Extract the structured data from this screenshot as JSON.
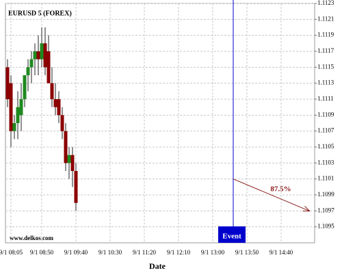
{
  "chart_data": {
    "type": "candlestick",
    "title": "EURUSD 5 (FOREX)",
    "x_label": "Date",
    "watermark": "www.delkos.com",
    "x": [
      "9/1 08:00",
      "9/1 08:05",
      "9/1 08:10",
      "9/1 08:15",
      "9/1 08:20",
      "9/1 08:25",
      "9/1 08:30",
      "9/1 08:35",
      "9/1 08:40",
      "9/1 08:45",
      "9/1 08:50",
      "9/1 08:55",
      "9/1 09:00",
      "9/1 09:05",
      "9/1 09:10",
      "9/1 09:15",
      "9/1 09:20",
      "9/1 09:25",
      "9/1 09:30",
      "9/1 09:35",
      "9/1 09:40"
    ],
    "open": [
      1.1115,
      1.1113,
      1.1107,
      1.1108,
      1.1109,
      1.1111,
      1.1114,
      1.1115,
      1.1116,
      1.1117,
      1.1116,
      1.1118,
      1.1117,
      1.1113,
      1.1111,
      1.1111,
      1.1109,
      1.1107,
      1.1103,
      1.1104,
      1.1102
    ],
    "high": [
      1.1116,
      1.1114,
      1.1109,
      1.1112,
      1.1113,
      1.1114,
      1.1116,
      1.1117,
      1.1118,
      1.1119,
      1.112,
      1.112,
      1.1119,
      1.1115,
      1.1113,
      1.1112,
      1.111,
      1.1108,
      1.1105,
      1.1105,
      1.1103
    ],
    "low": [
      1.111,
      1.1105,
      1.1106,
      1.1106,
      1.1107,
      1.111,
      1.1112,
      1.1113,
      1.1114,
      1.1114,
      1.1115,
      1.1114,
      1.1113,
      1.111,
      1.1109,
      1.1108,
      1.1106,
      1.1102,
      1.1101,
      1.11,
      1.1097
    ],
    "close": [
      1.1111,
      1.1107,
      1.1108,
      1.111,
      1.1111,
      1.1114,
      1.1115,
      1.1116,
      1.1117,
      1.1116,
      1.1118,
      1.1115,
      1.1113,
      1.1111,
      1.111,
      1.1109,
      1.1107,
      1.1103,
      1.1104,
      1.1102,
      1.1098
    ],
    "up_color": "#1f8a1f",
    "down_color": "#8b0000",
    "xlim": [
      "9/1 07:57",
      "9/1 15:29"
    ],
    "xticks": [
      "9/1 08:05",
      "9/1 08:50",
      "9/1 09:40",
      "9/1 10:30",
      "9/1 11:20",
      "9/1 12:10",
      "9/1 13:00",
      "9/1 13:50",
      "9/1 14:40"
    ],
    "ylim": [
      1.1093,
      1.1123
    ],
    "yticks": [
      1.1095,
      1.1097,
      1.1099,
      1.1101,
      1.1103,
      1.1105,
      1.1107,
      1.1109,
      1.1111,
      1.1113,
      1.1115,
      1.1117,
      1.1119,
      1.1121,
      1.1123
    ],
    "grid": true,
    "event": {
      "x": "9/1 13:30",
      "label": "Event",
      "color": "#0000cc"
    },
    "forecast": {
      "label": "87.5%",
      "x": [
        "9/1 13:30",
        "9/1 15:21"
      ],
      "y": [
        1.1101,
        1.1097
      ],
      "color": "#8b1a1a"
    }
  }
}
